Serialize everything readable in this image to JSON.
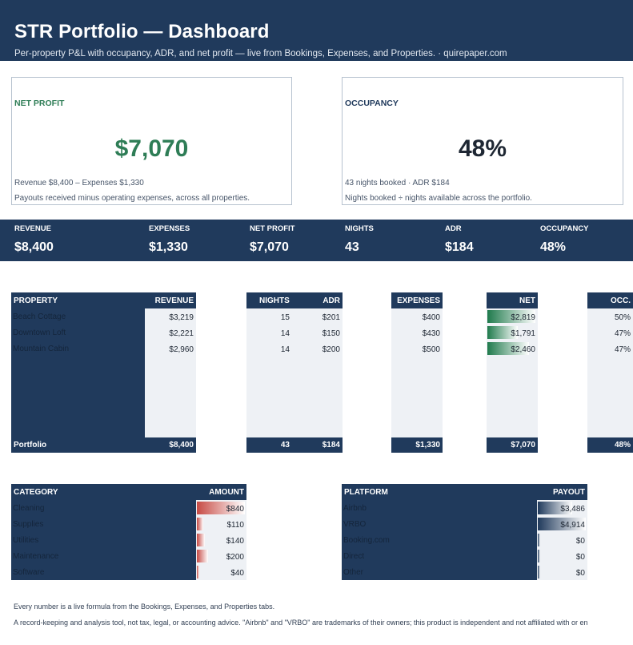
{
  "header": {
    "title": "STR Portfolio — Dashboard",
    "subtitle": "Per-property P&L with occupancy, ADR, and net profit — live from Bookings, Expenses, and Properties.  ·  quirepaper.com"
  },
  "cards": {
    "net_profit": {
      "label": "NET PROFIT",
      "value": "$7,070",
      "line1": "Revenue $8,400  –  Expenses $1,330",
      "line2": "Payouts received minus operating expenses, across all properties."
    },
    "occupancy": {
      "label": "OCCUPANCY",
      "value": "48%",
      "line1": "43 nights booked  ·  ADR $184",
      "line2": "Nights booked ÷ nights available across the portfolio."
    }
  },
  "summary": [
    {
      "label": "REVENUE",
      "value": "$8,400"
    },
    {
      "label": "EXPENSES",
      "value": "$1,330"
    },
    {
      "label": "NET PROFIT",
      "value": "$7,070"
    },
    {
      "label": "NIGHTS",
      "value": "43"
    },
    {
      "label": "ADR",
      "value": "$184"
    },
    {
      "label": "OCCUPANCY",
      "value": "48%"
    }
  ],
  "properties": {
    "headers": {
      "property": "PROPERTY",
      "revenue": "REVENUE",
      "nights": "NIGHTS",
      "adr": "ADR",
      "expenses": "EXPENSES",
      "net": "NET",
      "occ": "OCC."
    },
    "rows": [
      {
        "name": "Beach Cottage",
        "revenue": "$3,219",
        "nights": "15",
        "adr": "$201",
        "expenses": "$400",
        "net": "$2,819",
        "net_value": 2819,
        "occ": "50%"
      },
      {
        "name": "Downtown Loft",
        "revenue": "$2,221",
        "nights": "14",
        "adr": "$150",
        "expenses": "$430",
        "net": "$1,791",
        "net_value": 1791,
        "occ": "47%"
      },
      {
        "name": "Mountain Cabin",
        "revenue": "$2,960",
        "nights": "14",
        "adr": "$200",
        "expenses": "$500",
        "net": "$2,460",
        "net_value": 2460,
        "occ": "47%"
      }
    ],
    "footer": {
      "name": "Portfolio",
      "revenue": "$8,400",
      "nights": "43",
      "adr": "$184",
      "expenses": "$1,330",
      "net": "$7,070",
      "occ": "48%"
    }
  },
  "categories": {
    "header_name": "CATEGORY",
    "header_amount": "AMOUNT",
    "rows": [
      {
        "name": "Cleaning",
        "amount": "$840",
        "value": 840
      },
      {
        "name": "Supplies",
        "amount": "$110",
        "value": 110
      },
      {
        "name": "Utilities",
        "amount": "$140",
        "value": 140
      },
      {
        "name": "Maintenance",
        "amount": "$200",
        "value": 200
      },
      {
        "name": "Software",
        "amount": "$40",
        "value": 40
      }
    ]
  },
  "platforms": {
    "header_name": "PLATFORM",
    "header_amount": "PAYOUT",
    "rows": [
      {
        "name": "Airbnb",
        "amount": "$3,486",
        "value": 3486
      },
      {
        "name": "VRBO",
        "amount": "$4,914",
        "value": 4914
      },
      {
        "name": "Booking.com",
        "amount": "$0",
        "value": 0
      },
      {
        "name": "Direct",
        "amount": "$0",
        "value": 0
      },
      {
        "name": "Other",
        "amount": "$0",
        "value": 0
      }
    ]
  },
  "footnotes": {
    "line1": "Every number is a live formula from the Bookings, Expenses, and Properties tabs.",
    "line2": "A record-keeping and analysis tool, not tax, legal, or accounting advice. \"Airbnb\" and \"VRBO\" are trademarks of their owners; this product is independent and not affiliated with or en"
  },
  "colors": {
    "navy": "#203a5c",
    "green": "#2e7d56",
    "red_bar": "#c74b45"
  }
}
